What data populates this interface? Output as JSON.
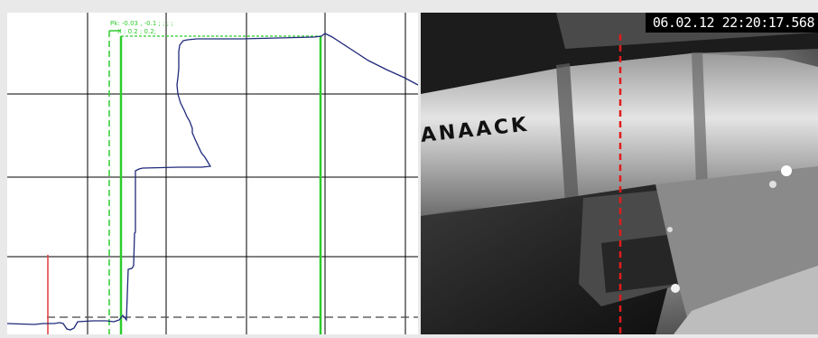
{
  "plot": {
    "readout_line1": "Pk: -0.03 , -0.1 ; ;  ;  ;",
    "readout_line2": "X : 0.2 ; 0.2;"
  },
  "camera": {
    "timestamp": "06.02.12 22:20:17.568",
    "overlay_text": "ANAACK"
  },
  "colors": {
    "grid": "#000000",
    "trace": "#1f2a7a",
    "cursor_green": "#2ecc2e",
    "marker_red": "#e23b3b",
    "video_cursor": "#e21b1b"
  }
}
